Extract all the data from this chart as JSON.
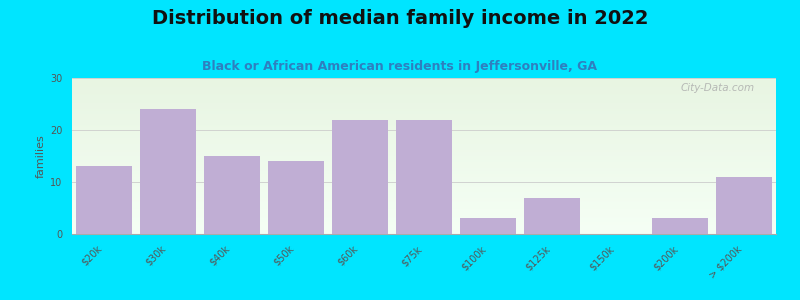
{
  "title": "Distribution of median family income in 2022",
  "subtitle": "Black or African American residents in Jeffersonville, GA",
  "ylabel": "families",
  "categories": [
    "$20k",
    "$30k",
    "$40k",
    "$50k",
    "$60k",
    "$75k",
    "$100k",
    "$125k",
    "$150k",
    "$200k",
    "> $200k"
  ],
  "values": [
    13,
    24,
    15,
    14,
    22,
    22,
    3,
    7,
    0,
    3,
    11
  ],
  "bar_color": "#c0aed4",
  "background_outer": "#00e5ff",
  "bg_top_color": "#e8f5e2",
  "bg_bottom_color": "#f5fff5",
  "ylim": [
    0,
    30
  ],
  "yticks": [
    0,
    10,
    20,
    30
  ],
  "title_fontsize": 14,
  "subtitle_fontsize": 9,
  "ylabel_fontsize": 8,
  "tick_fontsize": 7,
  "watermark": "City-Data.com"
}
